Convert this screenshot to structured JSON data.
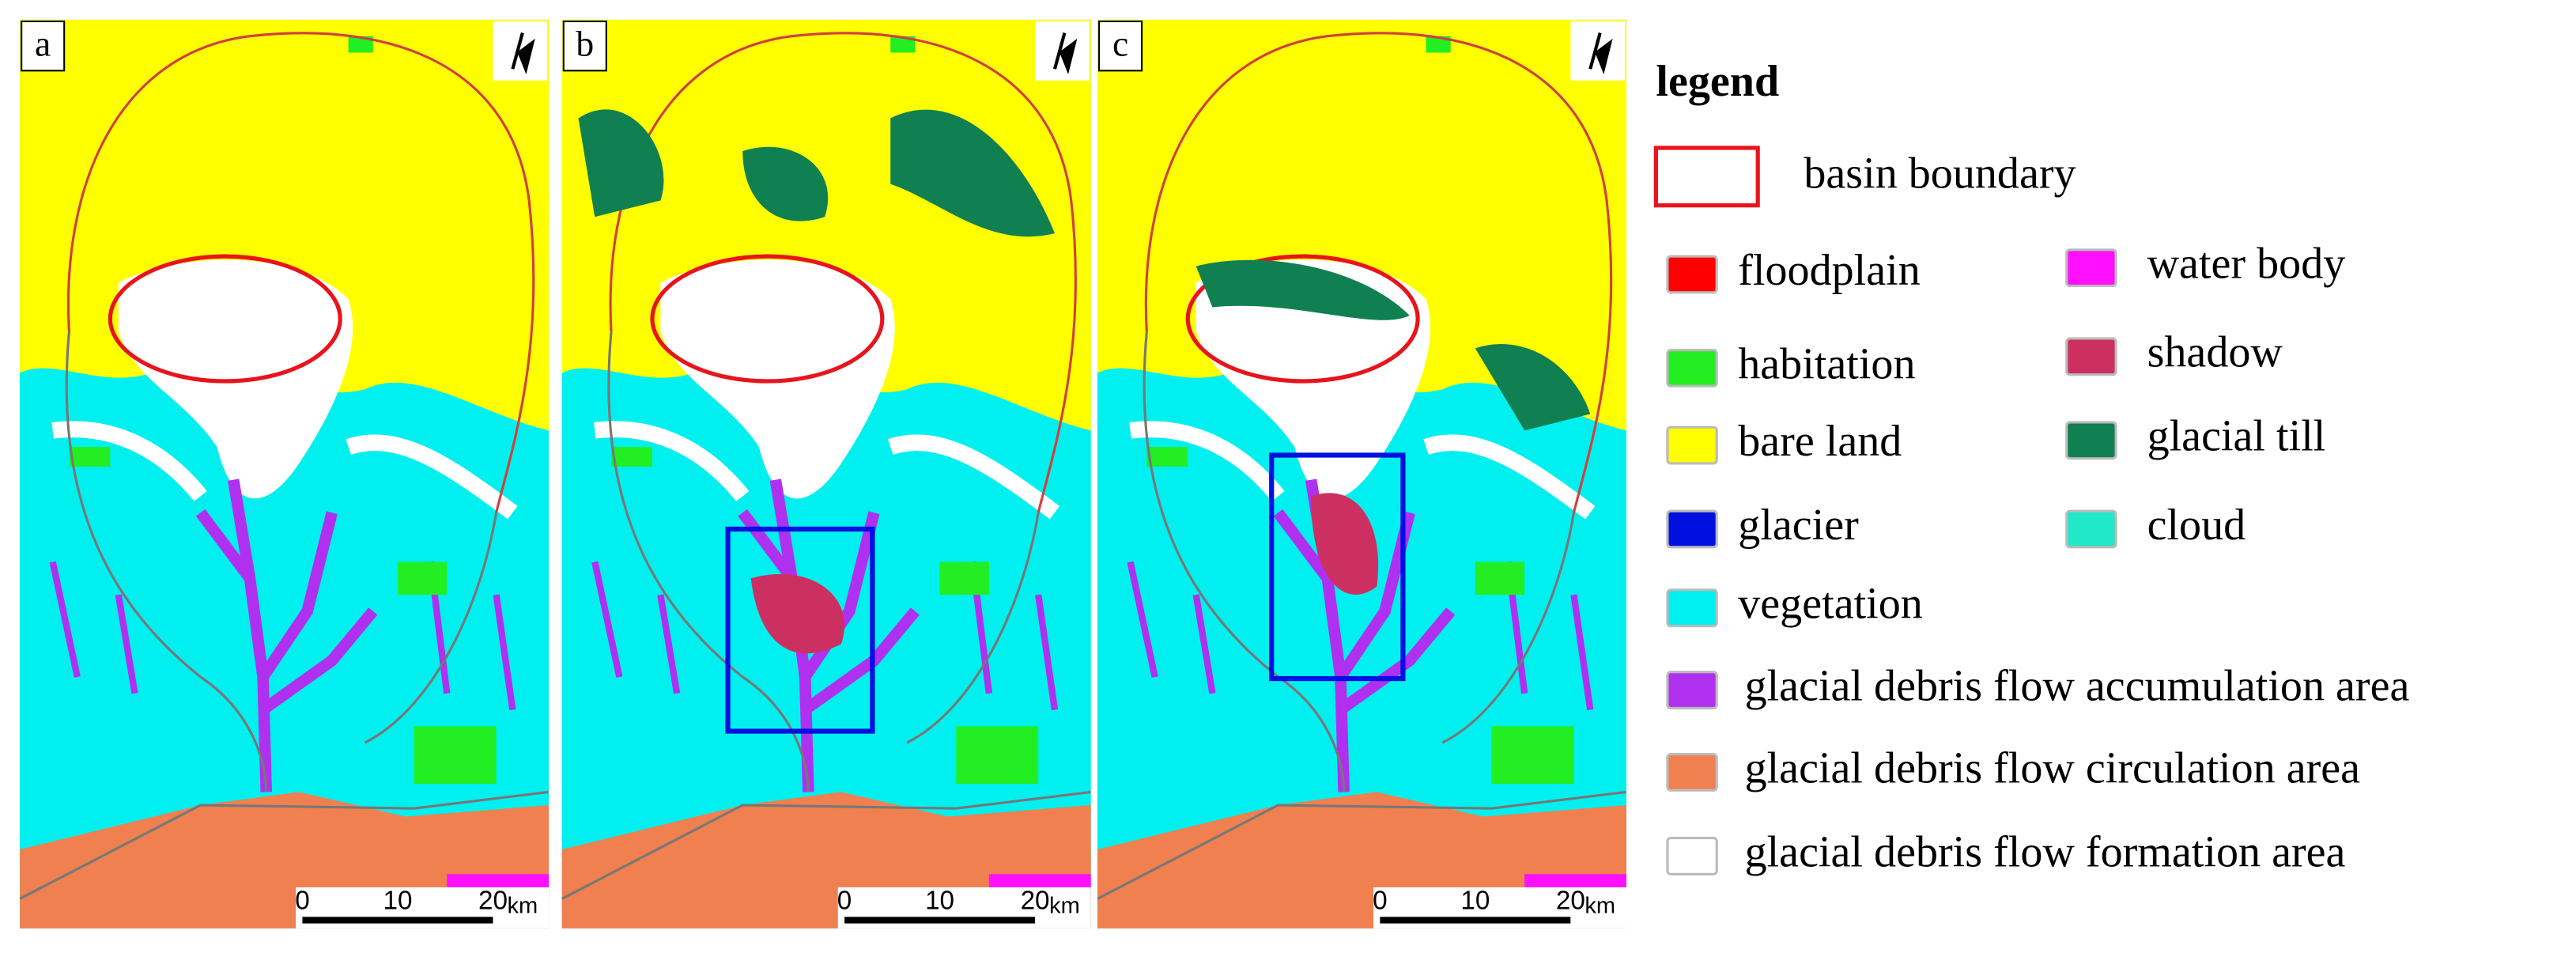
{
  "panels": [
    {
      "label": "a"
    },
    {
      "label": "b"
    },
    {
      "label": "c"
    }
  ],
  "scale_bar": {
    "labels": [
      "0",
      "10",
      "20"
    ],
    "unit": "km"
  },
  "legend": {
    "title": "legend",
    "boundary": {
      "label": "basin boundary",
      "color": "#e8141c"
    },
    "left": [
      {
        "label": "floodplain",
        "color": "#ff0000"
      },
      {
        "label": "habitation",
        "color": "#22ee22"
      },
      {
        "label": "bare land",
        "color": "#ffff00"
      },
      {
        "label": "glacier",
        "color": "#0010e0"
      },
      {
        "label": "vegetation",
        "color": "#00f0f0"
      },
      {
        "label": "glacial debris flow accumulation area",
        "color": "#b030f0"
      },
      {
        "label": "glacial debris flow circulation area",
        "color": "#f08050"
      },
      {
        "label": "glacial debris flow formation area",
        "color": "#ffffff"
      }
    ],
    "right": [
      {
        "label": "water body",
        "color": "#ff10ff"
      },
      {
        "label": "shadow",
        "color": "#cc3060"
      },
      {
        "label": "glacial till",
        "color": "#108050"
      },
      {
        "label": "cloud",
        "color": "#20e8c8"
      }
    ]
  }
}
